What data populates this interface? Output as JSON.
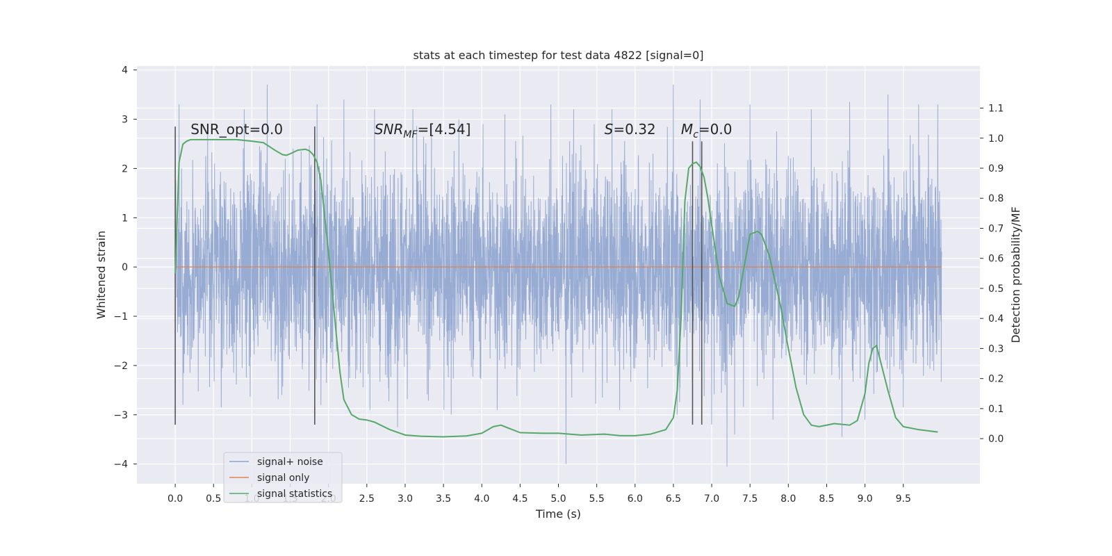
{
  "chart_data": {
    "type": "line",
    "title": "stats at each timestep for test data 4822 [signal=0]",
    "xlabel": "Time (s)",
    "ylabel": "Whitened strain",
    "ylabel_right": "Detection probability/MF",
    "xlim": [
      -0.5,
      10.5
    ],
    "ylim": [
      -4.4,
      4.08
    ],
    "ylim_right": [
      -0.15,
      1.24
    ],
    "xticks": [
      "0.0",
      "0.5",
      "1.0",
      "1.5",
      "2.0",
      "2.5",
      "3.0",
      "3.5",
      "4.0",
      "4.5",
      "5.0",
      "5.5",
      "6.0",
      "6.5",
      "7.0",
      "7.5",
      "8.0",
      "8.5",
      "9.0",
      "9.5"
    ],
    "yticks": [
      "4",
      "3",
      "2",
      "1",
      "0",
      "−1",
      "−2",
      "−3",
      "−4"
    ],
    "yticks_right": [
      "1.1",
      "1.0",
      "0.9",
      "0.8",
      "0.7",
      "0.6",
      "0.5",
      "0.4",
      "0.3",
      "0.2",
      "0.1",
      "0.0"
    ],
    "grid": true,
    "legend_position": "lower-left",
    "annotations": {
      "snr_opt": "SNR_opt=0.0",
      "snr_mf_main": "SNR",
      "snr_mf_sub": "MF",
      "snr_mf_rest": "=[4.54]",
      "s_main": "S",
      "s_rest": "=0.32",
      "mc_main": "M",
      "mc_sub": "c",
      "mc_rest": "=0.0"
    },
    "series": [
      {
        "name": "signal+ noise",
        "color": "#8fa5cf",
        "axis": "left",
        "x_range": [
          0.0,
          10.0
        ],
        "amplitude_core": 1.0,
        "peaks_high": [
          [
            0.05,
            3.3
          ],
          [
            0.9,
            3.2
          ],
          [
            1.2,
            3.7
          ],
          [
            1.85,
            3.3
          ],
          [
            2.2,
            3.4
          ],
          [
            2.6,
            3.2
          ],
          [
            3.1,
            3.2
          ],
          [
            3.7,
            3.0
          ],
          [
            4.3,
            3.1
          ],
          [
            4.9,
            3.3
          ],
          [
            5.2,
            3.2
          ],
          [
            5.7,
            3.2
          ],
          [
            6.5,
            3.7
          ],
          [
            6.85,
            3.4
          ],
          [
            7.5,
            3.3
          ],
          [
            7.8,
            3.55
          ],
          [
            8.3,
            3.2
          ],
          [
            8.8,
            3.35
          ],
          [
            9.3,
            3.5
          ],
          [
            9.7,
            3.3
          ],
          [
            9.95,
            3.3
          ]
        ],
        "peaks_low": [
          [
            0.1,
            -2.8
          ],
          [
            0.6,
            -2.85
          ],
          [
            1.9,
            -2.8
          ],
          [
            2.9,
            -3.25
          ],
          [
            3.6,
            -3.0
          ],
          [
            4.2,
            -2.9
          ],
          [
            5.1,
            -4.0
          ],
          [
            5.8,
            -2.9
          ],
          [
            6.55,
            -3.0
          ],
          [
            7.0,
            -3.2
          ],
          [
            7.2,
            -4.05
          ],
          [
            7.3,
            -3.4
          ],
          [
            7.8,
            -3.1
          ],
          [
            8.7,
            -3.45
          ],
          [
            9.0,
            -3.1
          ],
          [
            9.5,
            -2.85
          ]
        ]
      },
      {
        "name": "signal only",
        "color": "#dd8452",
        "axis": "left",
        "x": [
          0.0,
          10.0
        ],
        "y": [
          0.0,
          0.0
        ]
      },
      {
        "name": "signal statistics",
        "color": "#55a868",
        "axis": "right",
        "x": [
          0.0,
          0.05,
          0.1,
          0.15,
          0.2,
          0.3,
          0.5,
          0.8,
          1.0,
          1.15,
          1.3,
          1.4,
          1.45,
          1.5,
          1.6,
          1.7,
          1.75,
          1.8,
          1.85,
          1.9,
          2.0,
          2.1,
          2.15,
          2.2,
          2.3,
          2.4,
          2.5,
          2.6,
          2.8,
          3.0,
          3.2,
          3.5,
          3.8,
          4.0,
          4.15,
          4.25,
          4.35,
          4.5,
          4.8,
          5.0,
          5.3,
          5.6,
          5.8,
          6.0,
          6.2,
          6.4,
          6.5,
          6.55,
          6.6,
          6.65,
          6.7,
          6.75,
          6.8,
          6.85,
          6.9,
          6.95,
          7.0,
          7.1,
          7.2,
          7.3,
          7.35,
          7.4,
          7.5,
          7.6,
          7.65,
          7.75,
          7.9,
          8.0,
          8.1,
          8.2,
          8.3,
          8.4,
          8.6,
          8.8,
          8.9,
          9.0,
          9.05,
          9.1,
          9.15,
          9.2,
          9.3,
          9.4,
          9.5,
          9.7,
          9.95
        ],
        "y": [
          0.55,
          0.92,
          0.98,
          0.99,
          0.995,
          0.995,
          0.995,
          0.995,
          0.99,
          0.985,
          0.96,
          0.945,
          0.943,
          0.948,
          0.96,
          0.963,
          0.958,
          0.945,
          0.92,
          0.86,
          0.62,
          0.35,
          0.22,
          0.13,
          0.08,
          0.065,
          0.062,
          0.055,
          0.03,
          0.012,
          0.008,
          0.006,
          0.009,
          0.018,
          0.04,
          0.045,
          0.035,
          0.02,
          0.018,
          0.018,
          0.012,
          0.015,
          0.01,
          0.01,
          0.015,
          0.03,
          0.07,
          0.16,
          0.4,
          0.79,
          0.9,
          0.915,
          0.92,
          0.905,
          0.87,
          0.8,
          0.71,
          0.54,
          0.45,
          0.44,
          0.47,
          0.54,
          0.68,
          0.69,
          0.68,
          0.61,
          0.44,
          0.3,
          0.17,
          0.08,
          0.045,
          0.04,
          0.05,
          0.045,
          0.06,
          0.15,
          0.25,
          0.3,
          0.31,
          0.26,
          0.16,
          0.07,
          0.04,
          0.03,
          0.022
        ]
      }
    ],
    "markers": {
      "color": "#555555",
      "lines": [
        {
          "x": 0.0,
          "y0": -3.2,
          "y1": 2.85
        },
        {
          "x": 1.82,
          "y0": -3.2,
          "y1": 2.85
        },
        {
          "x": 6.75,
          "y0": -3.2,
          "y1": 2.55
        },
        {
          "x": 6.87,
          "y0": -3.2,
          "y1": 2.55
        }
      ]
    }
  }
}
